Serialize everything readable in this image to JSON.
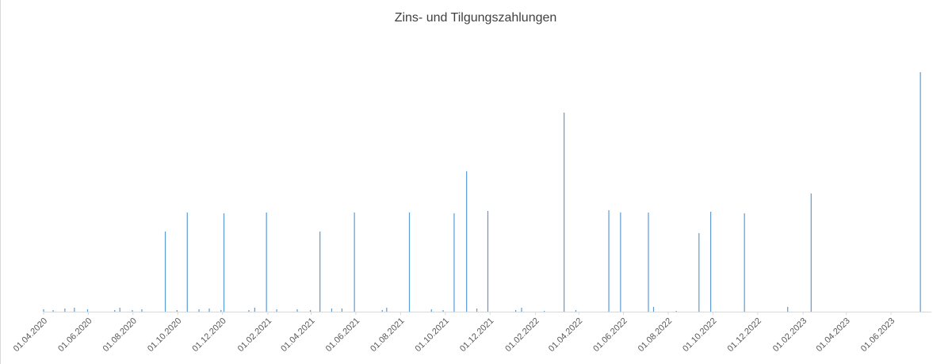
{
  "chart_data": {
    "type": "bar",
    "title": "Zins- und Tilgungszahlungen",
    "x": [
      "01.04.2020",
      "14.04.2020",
      "30.04.2020",
      "13.05.2020",
      "31.05.2020",
      "07.07.2020",
      "14.07.2020",
      "31.07.2020",
      "13.08.2020",
      "14.09.2020",
      "30.09.2020",
      "14.10.2020",
      "30.10.2020",
      "13.11.2020",
      "29.11.2020",
      "03.12.2020",
      "06.01.2021",
      "14.01.2021",
      "30.01.2021",
      "13.02.2021",
      "13.03.2021",
      "31.03.2021",
      "13.04.2021",
      "29.04.2021",
      "13.05.2021",
      "30.05.2021",
      "07.07.2021",
      "13.07.2021",
      "13.08.2021",
      "12.09.2021",
      "28.09.2021",
      "13.10.2021",
      "30.10.2021",
      "13.11.2021",
      "28.11.2021",
      "05.01.2022",
      "13.01.2022",
      "13.02.2022",
      "12.03.2022",
      "28.03.2022",
      "12.05.2022",
      "28.05.2022",
      "05.07.2022",
      "12.07.2022",
      "12.08.2022",
      "12.09.2022",
      "28.09.2022",
      "13.11.2022",
      "11.01.2023",
      "12.02.2023",
      "11.07.2023"
    ],
    "values": [
      3,
      2,
      4,
      5,
      3,
      2,
      5,
      2,
      3,
      101,
      2,
      125,
      3,
      4,
      2,
      124,
      2,
      5,
      125,
      3,
      3,
      2,
      101,
      4,
      4,
      125,
      2,
      5,
      125,
      3,
      2,
      124,
      177,
      4,
      127,
      2,
      5,
      1,
      251,
      2,
      128,
      125,
      125,
      6,
      1,
      99,
      126,
      124,
      6,
      149,
      302
    ],
    "color": "#5b9bd5",
    "xlim": [
      "01.04.2020",
      "26.07.2023"
    ],
    "xticks": [
      "01.04.2020",
      "01.06.2020",
      "01.08.2020",
      "01.10.2020",
      "01.12.2020",
      "01.02.2021",
      "01.04.2021",
      "01.06.2021",
      "01.08.2021",
      "01.10.2021",
      "01.12.2021",
      "01.02.2022",
      "01.04.2022",
      "01.06.2022",
      "01.08.2022",
      "01.10.2022",
      "01.12.2022",
      "01.02.2023",
      "01.04.2023",
      "01.06.2023"
    ],
    "ylim": [
      0,
      330
    ]
  }
}
